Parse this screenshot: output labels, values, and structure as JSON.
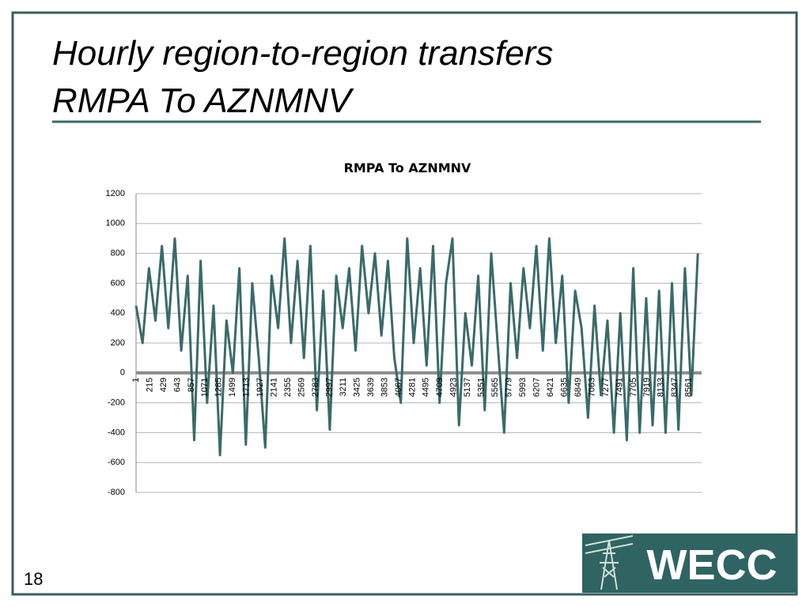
{
  "slide": {
    "title_lines": [
      "Hourly region-to-region transfers",
      "RMPA To AZNMNV"
    ],
    "page_number": "18",
    "logo_text": "WECC"
  },
  "chart_data": {
    "type": "line",
    "title": "RMPA To AZNMNV",
    "color": "#3a6b68",
    "grid": true,
    "xlim": [
      1,
      8760
    ],
    "ylim": [
      -800,
      1200
    ],
    "yticks": [
      -800,
      -600,
      -400,
      -200,
      0,
      200,
      400,
      600,
      800,
      1000,
      1200
    ],
    "xticks": [
      1,
      215,
      429,
      643,
      857,
      1071,
      1285,
      1499,
      1713,
      1927,
      2141,
      2355,
      2569,
      2783,
      2997,
      3211,
      3425,
      3639,
      3853,
      4067,
      4281,
      4495,
      4709,
      4923,
      5137,
      5351,
      5565,
      5779,
      5993,
      6207,
      6421,
      6635,
      6849,
      7063,
      7277,
      7491,
      7705,
      7919,
      8133,
      8347,
      8561
    ],
    "x": [
      1,
      101,
      201,
      301,
      401,
      501,
      601,
      701,
      801,
      901,
      1001,
      1101,
      1201,
      1301,
      1401,
      1501,
      1601,
      1701,
      1801,
      1901,
      2001,
      2101,
      2201,
      2301,
      2401,
      2501,
      2601,
      2701,
      2801,
      2901,
      3001,
      3101,
      3201,
      3301,
      3401,
      3501,
      3601,
      3701,
      3801,
      3901,
      4001,
      4101,
      4201,
      4301,
      4401,
      4501,
      4601,
      4701,
      4801,
      4901,
      5001,
      5101,
      5201,
      5301,
      5401,
      5501,
      5601,
      5701,
      5801,
      5901,
      6001,
      6101,
      6201,
      6301,
      6401,
      6501,
      6601,
      6701,
      6801,
      6901,
      7001,
      7101,
      7201,
      7301,
      7401,
      7501,
      7601,
      7701,
      7801,
      7901,
      8001,
      8101,
      8201,
      8301,
      8401,
      8501,
      8601,
      8701
    ],
    "series": [
      {
        "name": "RMPA To AZNMNV",
        "color": "#3a6b68",
        "values": [
          450,
          200,
          700,
          350,
          850,
          300,
          900,
          150,
          650,
          -450,
          750,
          -200,
          450,
          -550,
          350,
          0,
          700,
          -480,
          600,
          100,
          -500,
          650,
          300,
          900,
          200,
          750,
          100,
          850,
          -250,
          550,
          -380,
          650,
          300,
          700,
          150,
          850,
          400,
          800,
          250,
          750,
          100,
          -200,
          900,
          200,
          700,
          50,
          850,
          -200,
          600,
          900,
          -350,
          400,
          50,
          650,
          -250,
          800,
          200,
          -400,
          600,
          100,
          700,
          300,
          850,
          150,
          900,
          200,
          650,
          -200,
          550,
          300,
          -300,
          450,
          -150,
          350,
          -400,
          400,
          -450,
          700,
          -400,
          500,
          -350,
          550,
          -400,
          600,
          -380,
          700,
          -150,
          800
        ]
      }
    ]
  }
}
